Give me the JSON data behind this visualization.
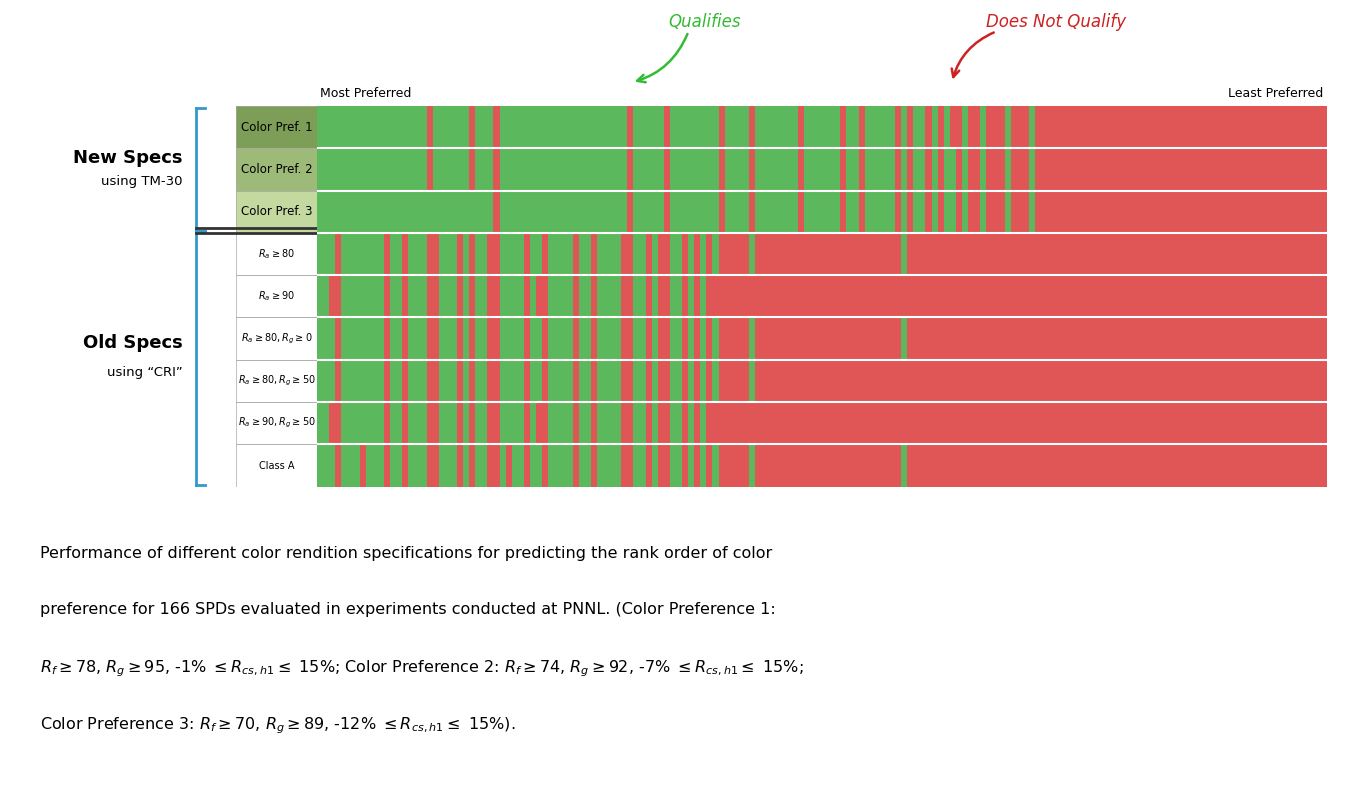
{
  "n_spds": 166,
  "row_labels_math": [
    "Color Pref. 1",
    "Color Pref. 2",
    "Color Pref. 3",
    "$R_a \\geq 80$",
    "$R_a \\geq 90$",
    "$R_a \\geq 80, R_g \\geq 0$",
    "$R_a \\geq 80, R_g \\geq 50$",
    "$R_a \\geq 90, R_g \\geq 50$",
    "Class A"
  ],
  "new_specs_count": 3,
  "old_specs_count": 6,
  "label_bg_colors": [
    "#7d9e56",
    "#9dba78",
    "#c3d9a0",
    "#ffffff",
    "#ffffff",
    "#ffffff",
    "#ffffff",
    "#ffffff",
    "#ffffff"
  ],
  "green_color": "#5cb85c",
  "red_color": "#e05555",
  "qualify_patterns": [
    [
      1,
      1,
      1,
      1,
      1,
      1,
      1,
      1,
      1,
      1,
      1,
      1,
      1,
      1,
      1,
      1,
      1,
      1,
      0,
      1,
      1,
      1,
      1,
      1,
      1,
      0,
      1,
      1,
      1,
      0,
      1,
      1,
      1,
      1,
      1,
      1,
      1,
      1,
      1,
      1,
      1,
      1,
      1,
      1,
      1,
      1,
      1,
      1,
      1,
      1,
      1,
      0,
      1,
      1,
      1,
      1,
      1,
      0,
      1,
      1,
      1,
      1,
      1,
      1,
      1,
      1,
      0,
      1,
      1,
      1,
      1,
      0,
      1,
      1,
      1,
      1,
      1,
      1,
      1,
      0,
      1,
      1,
      1,
      1,
      1,
      1,
      0,
      1,
      1,
      0,
      1,
      1,
      1,
      1,
      1,
      0,
      1,
      0,
      1,
      1,
      0,
      1,
      0,
      1,
      0,
      0,
      1,
      0,
      0,
      1,
      0,
      0,
      0,
      1,
      0,
      0,
      0,
      1,
      0,
      0,
      0,
      0,
      0,
      0,
      0,
      0,
      0,
      0,
      0,
      0,
      0,
      0,
      0,
      0,
      0,
      0,
      0,
      0,
      0,
      0,
      0,
      0,
      0,
      0,
      0,
      0,
      0,
      0,
      0,
      0,
      0,
      0,
      0,
      0,
      0,
      0,
      0,
      0,
      0,
      0,
      0,
      0,
      0,
      0,
      0,
      0
    ],
    [
      1,
      1,
      1,
      1,
      1,
      1,
      1,
      1,
      1,
      1,
      1,
      1,
      1,
      1,
      1,
      1,
      1,
      1,
      0,
      1,
      1,
      1,
      1,
      1,
      1,
      0,
      1,
      1,
      1,
      0,
      1,
      1,
      1,
      1,
      1,
      1,
      1,
      1,
      1,
      1,
      1,
      1,
      1,
      1,
      1,
      1,
      1,
      1,
      1,
      1,
      1,
      0,
      1,
      1,
      1,
      1,
      1,
      0,
      1,
      1,
      1,
      1,
      1,
      1,
      1,
      1,
      0,
      1,
      1,
      1,
      1,
      0,
      1,
      1,
      1,
      1,
      1,
      1,
      1,
      0,
      1,
      1,
      1,
      1,
      1,
      1,
      0,
      1,
      1,
      0,
      1,
      1,
      1,
      1,
      1,
      0,
      1,
      0,
      1,
      1,
      0,
      1,
      0,
      1,
      1,
      0,
      1,
      0,
      0,
      1,
      0,
      0,
      0,
      1,
      0,
      0,
      0,
      1,
      0,
      0,
      0,
      0,
      0,
      0,
      0,
      0,
      0,
      0,
      0,
      0,
      0,
      0,
      0,
      0,
      0,
      0,
      0,
      0,
      0,
      0,
      0,
      0,
      0,
      0,
      0,
      0,
      0,
      0,
      0,
      0,
      0,
      0,
      0,
      0,
      0,
      0,
      0,
      0,
      0,
      0,
      0,
      0,
      0,
      0,
      0,
      0
    ],
    [
      1,
      1,
      1,
      1,
      1,
      1,
      1,
      1,
      1,
      1,
      1,
      1,
      1,
      1,
      1,
      1,
      1,
      1,
      1,
      1,
      1,
      1,
      1,
      1,
      1,
      1,
      1,
      1,
      1,
      0,
      1,
      1,
      1,
      1,
      1,
      1,
      1,
      1,
      1,
      1,
      1,
      1,
      1,
      1,
      1,
      1,
      1,
      1,
      1,
      1,
      1,
      0,
      1,
      1,
      1,
      1,
      1,
      0,
      1,
      1,
      1,
      1,
      1,
      1,
      1,
      1,
      0,
      1,
      1,
      1,
      1,
      0,
      1,
      1,
      1,
      1,
      1,
      1,
      1,
      0,
      1,
      1,
      1,
      1,
      1,
      1,
      0,
      1,
      1,
      0,
      1,
      1,
      1,
      1,
      1,
      0,
      1,
      0,
      1,
      1,
      0,
      1,
      0,
      1,
      1,
      0,
      1,
      0,
      0,
      1,
      0,
      0,
      0,
      1,
      0,
      0,
      0,
      1,
      0,
      0,
      0,
      0,
      0,
      0,
      0,
      0,
      0,
      0,
      0,
      0,
      0,
      0,
      0,
      0,
      0,
      0,
      0,
      0,
      0,
      0,
      0,
      0,
      0,
      0,
      0,
      0,
      0,
      0,
      0,
      0,
      0,
      0,
      0,
      0,
      0,
      0,
      0,
      0,
      0,
      0,
      0,
      0,
      0,
      0,
      0,
      0
    ],
    [
      1,
      1,
      1,
      0,
      1,
      1,
      1,
      1,
      1,
      1,
      1,
      0,
      1,
      1,
      0,
      1,
      1,
      1,
      0,
      0,
      1,
      1,
      1,
      0,
      1,
      0,
      1,
      1,
      0,
      0,
      1,
      1,
      1,
      1,
      0,
      1,
      1,
      0,
      1,
      1,
      1,
      1,
      0,
      1,
      1,
      0,
      1,
      1,
      1,
      1,
      0,
      0,
      1,
      1,
      0,
      1,
      0,
      0,
      1,
      1,
      0,
      1,
      0,
      1,
      0,
      1,
      0,
      0,
      0,
      0,
      0,
      1,
      0,
      0,
      0,
      0,
      0,
      0,
      0,
      0,
      0,
      0,
      0,
      0,
      0,
      0,
      0,
      0,
      0,
      0,
      0,
      0,
      0,
      0,
      0,
      0,
      1,
      0,
      0,
      0,
      0,
      0,
      0,
      0,
      0,
      0,
      0,
      0,
      0,
      0,
      0,
      0,
      0,
      0,
      0,
      0,
      0,
      0,
      0,
      0,
      0,
      0,
      0,
      0,
      0,
      0,
      0,
      0,
      0,
      0,
      0,
      0,
      0,
      0,
      0,
      0,
      0,
      0,
      0,
      0,
      0,
      0,
      0,
      0,
      0,
      0,
      0,
      0,
      0,
      0,
      0,
      0,
      0,
      0,
      0,
      0,
      0,
      0,
      0,
      0,
      0,
      0,
      0,
      0,
      0,
      0
    ],
    [
      1,
      1,
      0,
      0,
      1,
      1,
      1,
      1,
      1,
      1,
      1,
      0,
      1,
      1,
      0,
      1,
      1,
      1,
      0,
      0,
      1,
      1,
      1,
      0,
      1,
      0,
      1,
      1,
      0,
      0,
      1,
      1,
      1,
      1,
      0,
      1,
      0,
      0,
      1,
      1,
      1,
      1,
      0,
      1,
      1,
      0,
      1,
      1,
      1,
      1,
      0,
      0,
      1,
      1,
      0,
      1,
      0,
      0,
      1,
      1,
      0,
      1,
      0,
      1,
      0,
      0,
      0,
      0,
      0,
      0,
      0,
      0,
      0,
      0,
      0,
      0,
      0,
      0,
      0,
      0,
      0,
      0,
      0,
      0,
      0,
      0,
      0,
      0,
      0,
      0,
      0,
      0,
      0,
      0,
      0,
      0,
      0,
      0,
      0,
      0,
      0,
      0,
      0,
      0,
      0,
      0,
      0,
      0,
      0,
      0,
      0,
      0,
      0,
      0,
      0,
      0,
      0,
      0,
      0,
      0,
      0,
      0,
      0,
      0,
      0,
      0,
      0,
      0,
      0,
      0,
      0,
      0,
      0,
      0,
      0,
      0,
      0,
      0,
      0,
      0,
      0,
      0,
      0,
      0,
      0,
      0,
      0,
      0,
      0,
      0,
      0,
      0,
      0,
      0,
      0,
      0,
      0,
      0,
      0,
      0,
      0,
      0,
      0,
      0,
      0,
      0
    ],
    [
      1,
      1,
      1,
      0,
      1,
      1,
      1,
      1,
      1,
      1,
      1,
      0,
      1,
      1,
      0,
      1,
      1,
      1,
      0,
      0,
      1,
      1,
      1,
      0,
      1,
      0,
      1,
      1,
      0,
      0,
      1,
      1,
      1,
      1,
      0,
      1,
      1,
      0,
      1,
      1,
      1,
      1,
      0,
      1,
      1,
      0,
      1,
      1,
      1,
      1,
      0,
      0,
      1,
      1,
      0,
      1,
      0,
      0,
      1,
      1,
      0,
      1,
      0,
      1,
      0,
      1,
      0,
      0,
      0,
      0,
      0,
      1,
      0,
      0,
      0,
      0,
      0,
      0,
      0,
      0,
      0,
      0,
      0,
      0,
      0,
      0,
      0,
      0,
      0,
      0,
      0,
      0,
      0,
      0,
      0,
      0,
      1,
      0,
      0,
      0,
      0,
      0,
      0,
      0,
      0,
      0,
      0,
      0,
      0,
      0,
      0,
      0,
      0,
      0,
      0,
      0,
      0,
      0,
      0,
      0,
      0,
      0,
      0,
      0,
      0,
      0,
      0,
      0,
      0,
      0,
      0,
      0,
      0,
      0,
      0,
      0,
      0,
      0,
      0,
      0,
      0,
      0,
      0,
      0,
      0,
      0,
      0,
      0,
      0,
      0,
      0,
      0,
      0,
      0,
      0,
      0,
      0,
      0,
      0,
      0,
      0,
      0,
      0,
      0,
      0,
      0
    ],
    [
      1,
      1,
      1,
      0,
      1,
      1,
      1,
      1,
      1,
      1,
      1,
      0,
      1,
      1,
      0,
      1,
      1,
      1,
      0,
      0,
      1,
      1,
      1,
      0,
      1,
      0,
      1,
      1,
      0,
      0,
      1,
      1,
      1,
      1,
      0,
      1,
      1,
      0,
      1,
      1,
      1,
      1,
      0,
      1,
      1,
      0,
      1,
      1,
      1,
      1,
      0,
      0,
      1,
      1,
      0,
      1,
      0,
      0,
      1,
      1,
      0,
      1,
      0,
      1,
      0,
      1,
      0,
      0,
      0,
      0,
      0,
      1,
      0,
      0,
      0,
      0,
      0,
      0,
      0,
      0,
      0,
      0,
      0,
      0,
      0,
      0,
      0,
      0,
      0,
      0,
      0,
      0,
      0,
      0,
      0,
      0,
      0,
      0,
      0,
      0,
      0,
      0,
      0,
      0,
      0,
      0,
      0,
      0,
      0,
      0,
      0,
      0,
      0,
      0,
      0,
      0,
      0,
      0,
      0,
      0,
      0,
      0,
      0,
      0,
      0,
      0,
      0,
      0,
      0,
      0,
      0,
      0,
      0,
      0,
      0,
      0,
      0,
      0,
      0,
      0,
      0,
      0,
      0,
      0,
      0,
      0,
      0,
      0,
      0,
      0,
      0,
      0,
      0,
      0,
      0,
      0,
      0,
      0,
      0,
      0,
      0,
      0,
      0,
      0,
      0,
      0
    ],
    [
      1,
      1,
      0,
      0,
      1,
      1,
      1,
      1,
      1,
      1,
      1,
      0,
      1,
      1,
      0,
      1,
      1,
      1,
      0,
      0,
      1,
      1,
      1,
      0,
      1,
      0,
      1,
      1,
      0,
      0,
      1,
      1,
      1,
      1,
      0,
      1,
      0,
      0,
      1,
      1,
      1,
      1,
      0,
      1,
      1,
      0,
      1,
      1,
      1,
      1,
      0,
      0,
      1,
      1,
      0,
      1,
      0,
      0,
      1,
      1,
      0,
      1,
      0,
      1,
      0,
      0,
      0,
      0,
      0,
      0,
      0,
      0,
      0,
      0,
      0,
      0,
      0,
      0,
      0,
      0,
      0,
      0,
      0,
      0,
      0,
      0,
      0,
      0,
      0,
      0,
      0,
      0,
      0,
      0,
      0,
      0,
      0,
      0,
      0,
      0,
      0,
      0,
      0,
      0,
      0,
      0,
      0,
      0,
      0,
      0,
      0,
      0,
      0,
      0,
      0,
      0,
      0,
      0,
      0,
      0,
      0,
      0,
      0,
      0,
      0,
      0,
      0,
      0,
      0,
      0,
      0,
      0,
      0,
      0,
      0,
      0,
      0,
      0,
      0,
      0,
      0,
      0,
      0,
      0,
      0,
      0,
      0,
      0,
      0,
      0,
      0,
      0,
      0,
      0,
      0,
      0,
      0,
      0,
      0,
      0,
      0,
      0,
      0,
      0,
      0,
      0
    ],
    [
      1,
      1,
      1,
      0,
      1,
      1,
      1,
      0,
      1,
      1,
      1,
      0,
      1,
      1,
      0,
      1,
      1,
      1,
      0,
      0,
      1,
      1,
      1,
      0,
      1,
      0,
      1,
      1,
      0,
      0,
      1,
      0,
      1,
      1,
      0,
      1,
      1,
      0,
      1,
      1,
      1,
      1,
      0,
      1,
      1,
      0,
      1,
      1,
      1,
      1,
      0,
      0,
      1,
      1,
      0,
      1,
      0,
      0,
      1,
      1,
      0,
      1,
      0,
      1,
      0,
      1,
      0,
      0,
      0,
      0,
      0,
      1,
      0,
      0,
      0,
      0,
      0,
      0,
      0,
      0,
      0,
      0,
      0,
      0,
      0,
      0,
      0,
      0,
      0,
      0,
      0,
      0,
      0,
      0,
      0,
      0,
      1,
      0,
      0,
      0,
      0,
      0,
      0,
      0,
      0,
      0,
      0,
      0,
      0,
      0,
      0,
      0,
      0,
      0,
      0,
      0,
      0,
      0,
      0,
      0,
      0,
      0,
      0,
      0,
      0,
      0,
      0,
      0,
      0,
      0,
      0,
      0,
      0,
      0,
      0,
      0,
      0,
      0,
      0,
      0,
      0,
      0,
      0,
      0,
      0,
      0,
      0,
      0,
      0,
      0,
      0,
      0,
      0,
      0,
      0,
      0,
      0,
      0,
      0,
      0,
      0,
      0,
      0,
      0,
      0,
      0
    ]
  ],
  "fig_width": 13.5,
  "fig_height": 7.85,
  "qualifies_text": "Qualifies",
  "not_qualify_text": "Does Not Qualify",
  "qualifies_color": "#33bb33",
  "not_qualify_color": "#cc2222",
  "most_preferred_text": "Most Preferred",
  "least_preferred_text": "Least Preferred",
  "new_specs_label": "New Specs",
  "new_specs_sub": "using TM-30",
  "old_specs_label": "Old Specs",
  "old_specs_sub": "using “CRI”",
  "bracket_color": "#3399cc",
  "sep_color": "#333333",
  "caption_line1": "Performance of different color rendition specifications for predicting the rank order of color",
  "caption_line2": "preference for 166 SPDs evaluated in experiments conducted at PNNL. (Color Preference 1:",
  "caption_line3": "$R_f \\geq 78$, $R_g \\geq 95$, -1% $\\leq R_{cs,h1} \\leq$ 15%; Color Preference 2: $R_f \\geq 74$, $R_g \\geq 92$, -7% $\\leq R_{cs,h1} \\leq$ 15%;",
  "caption_line4": "Color Preference 3: $R_f \\geq 70$, $R_g \\geq 89$, -12% $\\leq R_{cs,h1} \\leq$ 15%)."
}
